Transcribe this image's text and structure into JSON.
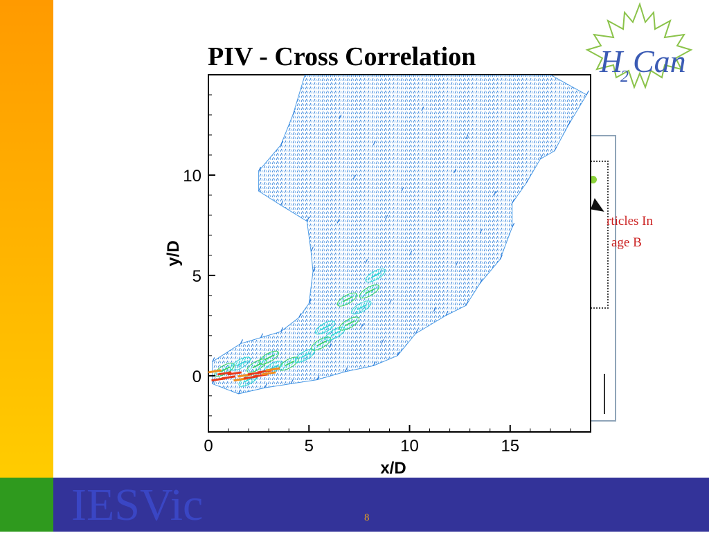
{
  "slide": {
    "title": "PIV - Cross Correlation",
    "footer_brand": "IESVic",
    "page_number": "8",
    "logo_text_main": "H",
    "logo_text_sub": "2",
    "logo_text_tail": "Can",
    "background_text_line1": "rticles In",
    "background_text_line2": "age B"
  },
  "colors": {
    "left_bar_top": "#ff9a00",
    "left_bar_bottom": "#ffcc00",
    "bottom_bar": "#333399",
    "bottom_green": "#2f9a1e",
    "brand_text": "#3a46c4",
    "page_number": "#e6a020",
    "logo_green": "#8bc34a",
    "logo_blue": "#3b5bb4",
    "vector_blue": "#2b7bd8",
    "vector_cyan": "#2fd6d6",
    "vector_green": "#38d05a",
    "vector_red": "#e83818",
    "vector_orange": "#f28c1a"
  },
  "chart_data": {
    "type": "scatter",
    "title": "",
    "xlabel": "x/D",
    "ylabel": "y/D",
    "xlim": [
      0,
      19
    ],
    "ylim": [
      -2.8,
      15
    ],
    "xticks": [
      0,
      5,
      10,
      15
    ],
    "yticks": [
      0,
      5,
      10
    ],
    "grid": false,
    "legend": "none",
    "series": [
      {
        "kind": "velocity-magnitude-band",
        "category": "low",
        "points": [
          [
            0.2,
            -0.4
          ],
          [
            1.5,
            -0.9
          ],
          [
            2.8,
            -0.6
          ],
          [
            4.1,
            -0.4
          ],
          [
            5.4,
            -0.2
          ],
          [
            6.8,
            0.2
          ],
          [
            8.2,
            0.5
          ],
          [
            9.4,
            1.0
          ],
          [
            10.3,
            2.1
          ],
          [
            11.8,
            3.0
          ],
          [
            12.8,
            3.5
          ],
          [
            13.5,
            4.6
          ],
          [
            14.5,
            5.8
          ],
          [
            15.1,
            7.4
          ],
          [
            15.1,
            8.6
          ],
          [
            15.8,
            9.6
          ],
          [
            16.5,
            10.8
          ],
          [
            17.2,
            11.2
          ],
          [
            17.9,
            12.5
          ],
          [
            18.8,
            14.0
          ],
          [
            17.0,
            15.0
          ],
          [
            13.5,
            15.0
          ],
          [
            10.5,
            15.0
          ],
          [
            4.8,
            15.0
          ],
          [
            4.2,
            13.0
          ],
          [
            3.6,
            11.5
          ],
          [
            2.5,
            10.2
          ],
          [
            2.5,
            9.2
          ],
          [
            3.6,
            8.5
          ],
          [
            4.9,
            7.7
          ],
          [
            5.1,
            6.2
          ],
          [
            5.2,
            5.2
          ],
          [
            5.0,
            3.6
          ],
          [
            4.5,
            2.9
          ],
          [
            3.6,
            2.2
          ],
          [
            2.6,
            1.9
          ],
          [
            1.6,
            1.6
          ],
          [
            0.2,
            0.7
          ],
          [
            6.5,
            12.8
          ],
          [
            8.2,
            11.5
          ],
          [
            10.6,
            13.2
          ],
          [
            12.8,
            11.8
          ],
          [
            7.2,
            9.8
          ],
          [
            9.6,
            9.2
          ],
          [
            12.2,
            10.1
          ],
          [
            14.2,
            9.0
          ],
          [
            6.4,
            7.6
          ],
          [
            8.8,
            7.8
          ],
          [
            11.4,
            8.2
          ],
          [
            13.5,
            7.1
          ],
          [
            7.8,
            5.6
          ],
          [
            10.0,
            6.0
          ],
          [
            12.3,
            5.5
          ],
          [
            9.0,
            3.6
          ],
          [
            11.2,
            3.2
          ],
          [
            7.6,
            2.4
          ],
          [
            6.0,
            1.4
          ],
          [
            8.6,
            1.6
          ]
        ]
      },
      {
        "kind": "velocity-magnitude-band",
        "category": "medium",
        "points": [
          [
            0.8,
            0.3
          ],
          [
            1.6,
            0.6
          ],
          [
            2.4,
            0.5
          ],
          [
            3.2,
            0.4
          ],
          [
            4.0,
            0.6
          ],
          [
            4.8,
            1.0
          ],
          [
            5.6,
            1.6
          ],
          [
            6.3,
            2.1
          ],
          [
            7.0,
            2.6
          ],
          [
            7.6,
            3.4
          ],
          [
            8.0,
            4.2
          ],
          [
            8.3,
            5.0
          ],
          [
            6.9,
            3.8
          ],
          [
            5.8,
            2.4
          ],
          [
            3.0,
            0.9
          ],
          [
            2.0,
            -0.2
          ]
        ]
      },
      {
        "kind": "velocity-magnitude-band",
        "category": "high",
        "points": [
          [
            0.3,
            0.2
          ],
          [
            0.8,
            0.1
          ],
          [
            1.3,
            0.1
          ],
          [
            1.8,
            0.0
          ],
          [
            2.3,
            0.1
          ],
          [
            2.8,
            0.2
          ],
          [
            3.2,
            0.3
          ],
          [
            0.5,
            -0.2
          ],
          [
            1.0,
            -0.1
          ],
          [
            1.6,
            -0.2
          ],
          [
            2.1,
            -0.1
          ],
          [
            2.6,
            0.0
          ],
          [
            3.0,
            0.1
          ]
        ]
      }
    ]
  }
}
